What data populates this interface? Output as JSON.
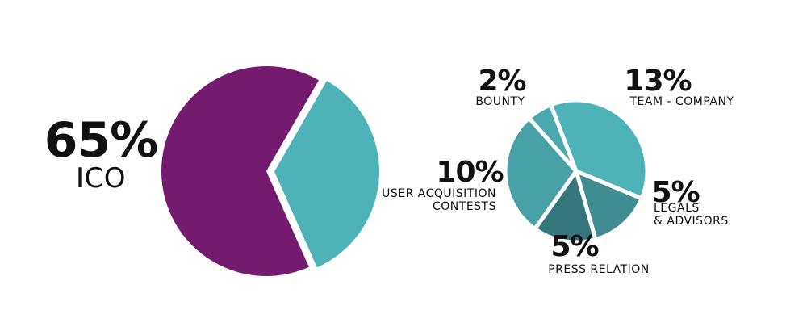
{
  "chart_data": [
    {
      "type": "pie",
      "categories": [
        "ICO",
        null
      ],
      "values": [
        65,
        35
      ],
      "value_labels": [
        "65%",
        null
      ],
      "colors": [
        "#741b6f",
        "#4db3b9"
      ]
    },
    {
      "type": "pie",
      "categories": [
        "TEAM - COMPANY",
        "LEGALS\n& ADVISORS",
        "PRESS RELATION",
        "USER ACQUISITION\nCONTESTS",
        "BOUNTY"
      ],
      "values": [
        13,
        5,
        5,
        10,
        2
      ],
      "value_labels": [
        "13%",
        "5%",
        "5%",
        "10%",
        "2%"
      ],
      "colors": [
        "#4db3b9",
        "#3f8d91",
        "#35767a",
        "#48a1a7",
        "#4aa8ae"
      ]
    }
  ]
}
